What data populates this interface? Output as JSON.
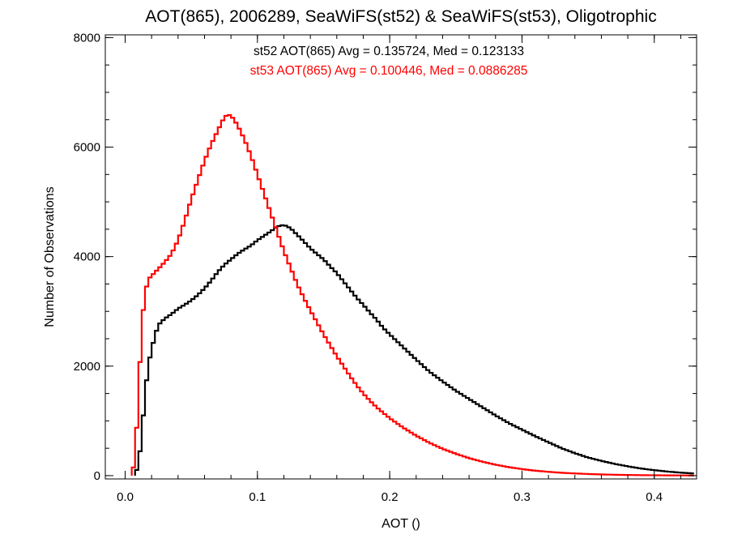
{
  "chart_data": {
    "type": "line",
    "title": "AOT(865), 2006289, SeaWiFS(st52) & SeaWiFS(st53), Oligotrophic",
    "xlabel": "AOT ()",
    "ylabel": "Number of Observations",
    "xlim": [
      -0.015,
      0.432
    ],
    "ylim": [
      -60,
      8050
    ],
    "x_ticks": [
      {
        "value": 0.0,
        "label": "0.0"
      },
      {
        "value": 0.1,
        "label": "0.1"
      },
      {
        "value": 0.2,
        "label": "0.2"
      },
      {
        "value": 0.3,
        "label": "0.3"
      },
      {
        "value": 0.4,
        "label": "0.4"
      }
    ],
    "x_minor_step": 0.02,
    "y_ticks": [
      {
        "value": 0,
        "label": "0"
      },
      {
        "value": 2000,
        "label": "2000"
      },
      {
        "value": 4000,
        "label": "4000"
      },
      {
        "value": 6000,
        "label": "6000"
      },
      {
        "value": 8000,
        "label": "8000"
      }
    ],
    "y_minor_step": 500,
    "grid": false,
    "annotations": [
      {
        "text": "st52 AOT(865) Avg = 0.135724, Med = 0.123133",
        "color": "#000000"
      },
      {
        "text": "st53 AOT(865) Avg = 0.100446, Med = 0.0886285",
        "color": "#ff0000"
      }
    ],
    "bin_width": 0.0025,
    "series": [
      {
        "color": "#000000",
        "points": [
          [
            0.0075,
            0
          ],
          [
            0.0105,
            250
          ],
          [
            0.013,
            900
          ],
          [
            0.016,
            1700
          ],
          [
            0.019,
            2200
          ],
          [
            0.022,
            2500
          ],
          [
            0.025,
            2750
          ],
          [
            0.03,
            2870
          ],
          [
            0.035,
            2950
          ],
          [
            0.04,
            3050
          ],
          [
            0.045,
            3120
          ],
          [
            0.05,
            3200
          ],
          [
            0.055,
            3300
          ],
          [
            0.06,
            3420
          ],
          [
            0.065,
            3560
          ],
          [
            0.07,
            3720
          ],
          [
            0.075,
            3850
          ],
          [
            0.08,
            3950
          ],
          [
            0.085,
            4050
          ],
          [
            0.09,
            4130
          ],
          [
            0.095,
            4200
          ],
          [
            0.1,
            4300
          ],
          [
            0.105,
            4380
          ],
          [
            0.11,
            4460
          ],
          [
            0.115,
            4550
          ],
          [
            0.12,
            4580
          ],
          [
            0.125,
            4520
          ],
          [
            0.13,
            4400
          ],
          [
            0.135,
            4280
          ],
          [
            0.14,
            4150
          ],
          [
            0.145,
            4050
          ],
          [
            0.15,
            3950
          ],
          [
            0.155,
            3820
          ],
          [
            0.16,
            3700
          ],
          [
            0.165,
            3550
          ],
          [
            0.17,
            3400
          ],
          [
            0.175,
            3250
          ],
          [
            0.18,
            3120
          ],
          [
            0.185,
            2980
          ],
          [
            0.19,
            2850
          ],
          [
            0.195,
            2700
          ],
          [
            0.2,
            2580
          ],
          [
            0.21,
            2350
          ],
          [
            0.22,
            2120
          ],
          [
            0.23,
            1900
          ],
          [
            0.24,
            1720
          ],
          [
            0.25,
            1550
          ],
          [
            0.26,
            1400
          ],
          [
            0.27,
            1250
          ],
          [
            0.28,
            1100
          ],
          [
            0.29,
            960
          ],
          [
            0.3,
            840
          ],
          [
            0.31,
            720
          ],
          [
            0.32,
            610
          ],
          [
            0.33,
            500
          ],
          [
            0.34,
            410
          ],
          [
            0.35,
            330
          ],
          [
            0.36,
            270
          ],
          [
            0.37,
            215
          ],
          [
            0.38,
            170
          ],
          [
            0.39,
            130
          ],
          [
            0.4,
            100
          ],
          [
            0.41,
            75
          ],
          [
            0.42,
            55
          ],
          [
            0.43,
            40
          ]
        ]
      },
      {
        "color": "#ff0000",
        "points": [
          [
            0.005,
            0
          ],
          [
            0.0075,
            300
          ],
          [
            0.01,
            1450
          ],
          [
            0.0125,
            2700
          ],
          [
            0.015,
            3350
          ],
          [
            0.018,
            3600
          ],
          [
            0.022,
            3700
          ],
          [
            0.026,
            3800
          ],
          [
            0.03,
            3900
          ],
          [
            0.035,
            4050
          ],
          [
            0.04,
            4300
          ],
          [
            0.045,
            4650
          ],
          [
            0.05,
            5050
          ],
          [
            0.055,
            5400
          ],
          [
            0.06,
            5750
          ],
          [
            0.065,
            6050
          ],
          [
            0.07,
            6300
          ],
          [
            0.075,
            6550
          ],
          [
            0.078,
            6600
          ],
          [
            0.082,
            6520
          ],
          [
            0.086,
            6350
          ],
          [
            0.09,
            6150
          ],
          [
            0.095,
            5850
          ],
          [
            0.1,
            5500
          ],
          [
            0.105,
            5150
          ],
          [
            0.11,
            4800
          ],
          [
            0.115,
            4450
          ],
          [
            0.12,
            4100
          ],
          [
            0.125,
            3800
          ],
          [
            0.13,
            3500
          ],
          [
            0.135,
            3250
          ],
          [
            0.14,
            3020
          ],
          [
            0.145,
            2800
          ],
          [
            0.15,
            2580
          ],
          [
            0.155,
            2380
          ],
          [
            0.16,
            2180
          ],
          [
            0.165,
            2000
          ],
          [
            0.17,
            1820
          ],
          [
            0.175,
            1650
          ],
          [
            0.18,
            1500
          ],
          [
            0.185,
            1370
          ],
          [
            0.19,
            1250
          ],
          [
            0.195,
            1150
          ],
          [
            0.2,
            1050
          ],
          [
            0.21,
            880
          ],
          [
            0.22,
            730
          ],
          [
            0.23,
            600
          ],
          [
            0.24,
            490
          ],
          [
            0.25,
            400
          ],
          [
            0.26,
            320
          ],
          [
            0.27,
            255
          ],
          [
            0.28,
            200
          ],
          [
            0.29,
            155
          ],
          [
            0.3,
            120
          ],
          [
            0.31,
            90
          ],
          [
            0.32,
            70
          ],
          [
            0.33,
            52
          ],
          [
            0.34,
            40
          ],
          [
            0.35,
            30
          ],
          [
            0.36,
            22
          ],
          [
            0.37,
            16
          ],
          [
            0.38,
            12
          ],
          [
            0.39,
            9
          ],
          [
            0.4,
            7
          ],
          [
            0.41,
            5
          ],
          [
            0.42,
            4
          ],
          [
            0.43,
            3
          ]
        ]
      }
    ]
  }
}
